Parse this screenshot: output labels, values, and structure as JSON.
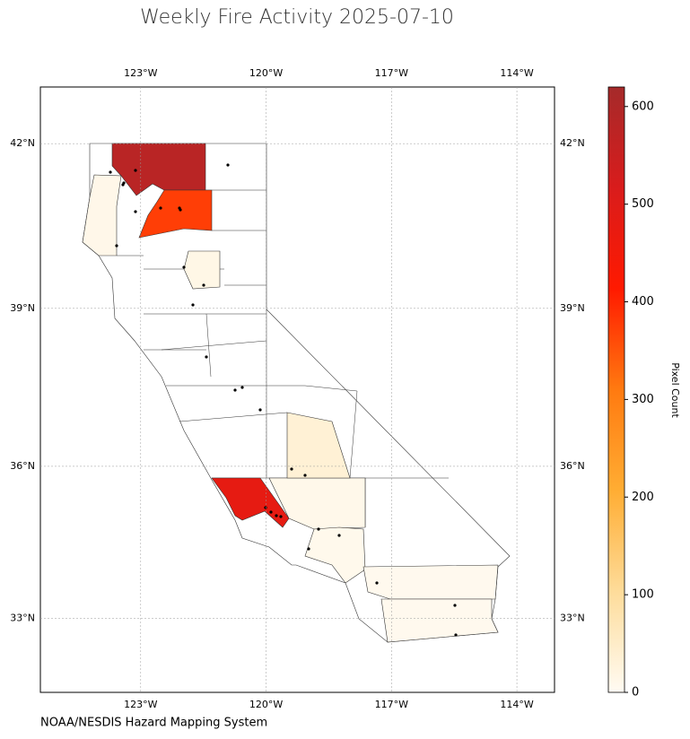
{
  "chart_data": {
    "type": "choropleth",
    "title": "Weekly Fire Activity 2025-07-10",
    "source": "NOAA/NESDIS Hazard Mapping System",
    "colorbar_label": "Pixel Count",
    "xlim": [
      -125.4,
      -113.1
    ],
    "ylim": [
      31.5,
      43.0
    ],
    "xticks": [
      {
        "value": -123,
        "label": "123°W"
      },
      {
        "value": -120,
        "label": "120°W"
      },
      {
        "value": -117,
        "label": "117°W"
      },
      {
        "value": -114,
        "label": "114°W"
      }
    ],
    "yticks": [
      {
        "value": 33,
        "label": "33°N"
      },
      {
        "value": 36,
        "label": "36°N"
      },
      {
        "value": 39,
        "label": "39°N"
      },
      {
        "value": 42,
        "label": "42°N"
      }
    ],
    "grid": true,
    "clim": [
      0,
      620
    ],
    "cticks": [
      0,
      100,
      200,
      300,
      400,
      500,
      600
    ],
    "colorscale": [
      "#fffbf3",
      "#fedc9a",
      "#ffad33",
      "#ff7a10",
      "#ff1a00",
      "#d91c1c",
      "#a52a2a"
    ],
    "region_values": [
      580,
      375,
      480,
      12,
      10,
      35,
      8,
      6,
      6,
      15
    ]
  }
}
